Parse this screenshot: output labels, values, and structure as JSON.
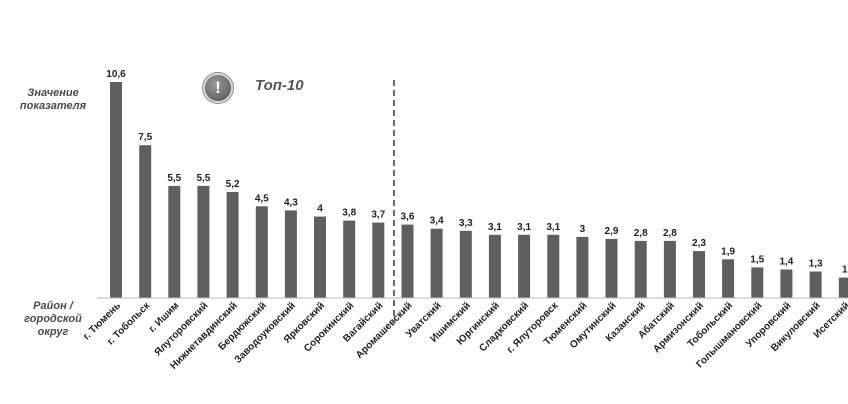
{
  "labels": {
    "ylabel_top": "Значение показателя",
    "ylabel_bottom": "Район / городской округ",
    "top10": "Топ-10",
    "badge_icon": "exclamation-icon",
    "badge_glyph": "!"
  },
  "colors": {
    "bar": "#5f5f5f",
    "text": "#222222",
    "label_gray": "#555555",
    "axis": "#b8b8b8",
    "divider": "#6a6a6a"
  },
  "chart_data": {
    "type": "bar",
    "title": "",
    "xlabel": "Район / городской округ",
    "ylabel": "Значение показателя",
    "ylim": [
      0,
      10.6
    ],
    "grid": false,
    "top_n_marked": 10,
    "categories": [
      "г. Тюмень",
      "г. Тобольск",
      "г. Ишим",
      "Ялуторовский",
      "Нижнетавдинский",
      "Бердюжский",
      "Заводоуковский",
      "Ярковский",
      "Сорокинский",
      "Вагайский",
      "Аромашевский",
      "Уватский",
      "Ишимский",
      "Юргинский",
      "Сладковский",
      "г. Ялуторовск",
      "Тюменский",
      "Омутинский",
      "Казанский",
      "Абатский",
      "Армизонский",
      "Тобольский",
      "Голышмановский",
      "Упоровский",
      "Викуловский",
      "Исетский"
    ],
    "values": [
      10.6,
      7.5,
      5.5,
      5.5,
      5.2,
      4.5,
      4.3,
      4,
      3.8,
      3.7,
      3.6,
      3.4,
      3.3,
      3.1,
      3.1,
      3.1,
      3,
      2.9,
      2.8,
      2.8,
      2.3,
      1.9,
      1.5,
      1.4,
      1.3,
      1
    ],
    "value_labels": [
      "10,6",
      "7,5",
      "5,5",
      "5,5",
      "5,2",
      "4,5",
      "4,3",
      "4",
      "3,8",
      "3,7",
      "3,6",
      "3,4",
      "3,3",
      "3,1",
      "3,1",
      "3,1",
      "3",
      "2,9",
      "2,8",
      "2,8",
      "2,3",
      "1,9",
      "1,5",
      "1,4",
      "1,3",
      "1"
    ]
  }
}
